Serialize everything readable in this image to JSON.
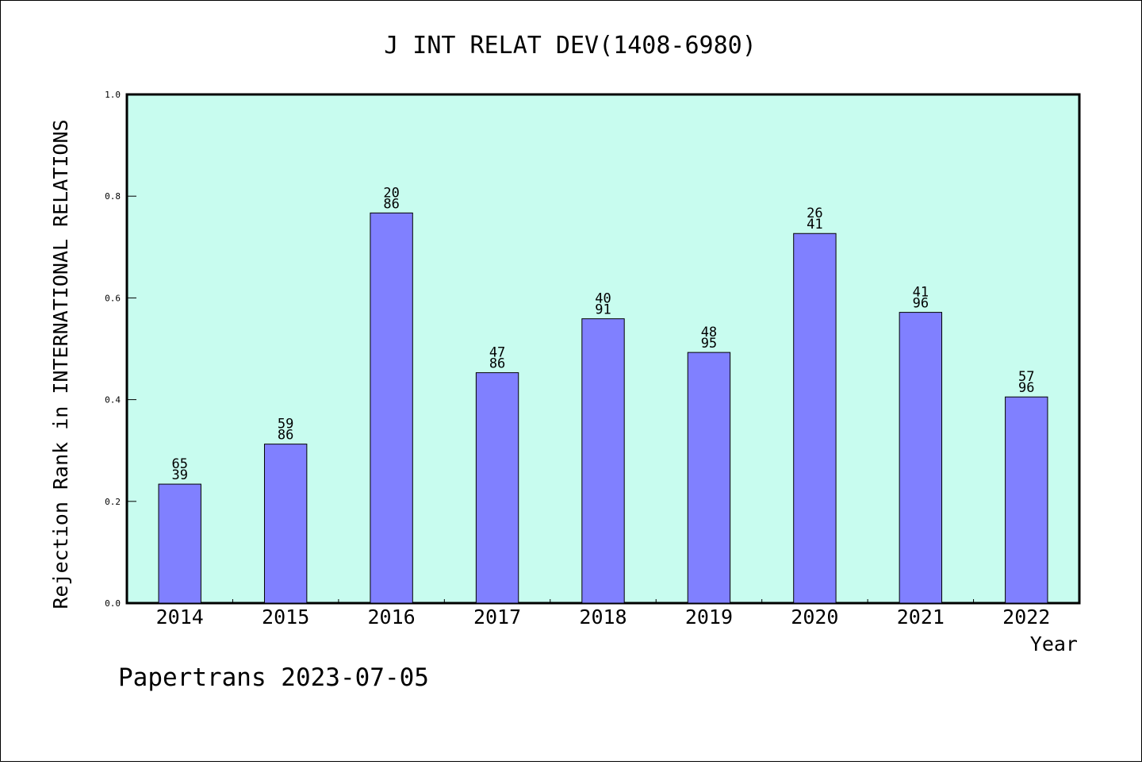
{
  "chart_data": {
    "type": "bar",
    "title": "J INT RELAT DEV(1408-6980)",
    "xlabel": "Year",
    "ylabel": "Rejection Rank in INTERNATIONAL RELATIONS",
    "ylim": [
      0,
      1.0
    ],
    "yticks": [
      "0.0",
      "0.2",
      "0.4",
      "0.6",
      "0.8",
      "1.0"
    ],
    "categories": [
      "2014",
      "2015",
      "2016",
      "2017",
      "2018",
      "2019",
      "2020",
      "2021",
      "2022"
    ],
    "values": [
      0.2339,
      0.3126,
      0.767,
      0.453,
      0.559,
      0.4928,
      0.7266,
      0.5716,
      0.4053
    ],
    "bar_labels": [
      [
        "65",
        "39"
      ],
      [
        "59",
        "86"
      ],
      [
        "20",
        "86"
      ],
      [
        "47",
        "86"
      ],
      [
        "40",
        "91"
      ],
      [
        "48",
        "95"
      ],
      [
        "26",
        "41"
      ],
      [
        "41",
        "96"
      ],
      [
        "57",
        "96"
      ]
    ],
    "grid": false,
    "legend": "none",
    "colors": {
      "plot_background": "#c8fcef",
      "bar_fill": "#8080ff",
      "bar_edge": "#000000"
    }
  },
  "footer": {
    "text": "Papertrans 2023-07-05"
  }
}
